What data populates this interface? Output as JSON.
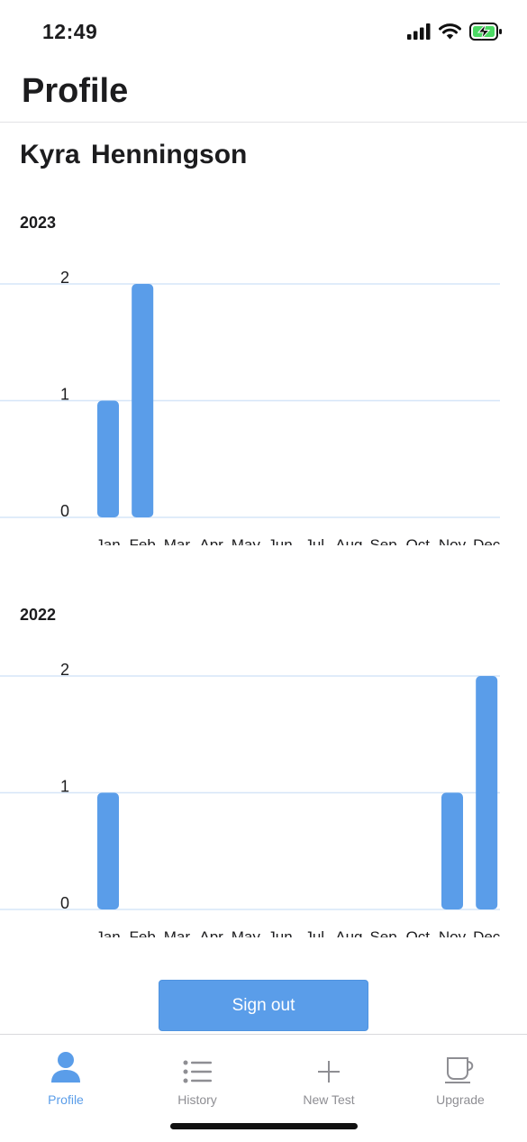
{
  "status_bar": {
    "time": "12:49",
    "signal_icon": "cellular-signal-icon",
    "wifi_icon": "wifi-icon",
    "battery_icon": "battery-charging-icon"
  },
  "page": {
    "title": "Profile"
  },
  "user": {
    "name": "Kyra  Henningson"
  },
  "months": [
    "Jan",
    "Feb",
    "Mar",
    "Apr",
    "May",
    "Jun",
    "Jul",
    "Aug",
    "Sep",
    "Oct",
    "Nov",
    "Dec"
  ],
  "y_ticks": [
    "0",
    "1",
    "2"
  ],
  "chart_data": [
    {
      "type": "bar",
      "title": "2023",
      "categories": [
        "Jan",
        "Feb",
        "Mar",
        "Apr",
        "May",
        "Jun",
        "Jul",
        "Aug",
        "Sep",
        "Oct",
        "Nov",
        "Dec"
      ],
      "values": [
        1,
        2,
        0,
        0,
        0,
        0,
        0,
        0,
        0,
        0,
        0,
        0
      ],
      "ylim": [
        0,
        2
      ],
      "yticks": [
        0,
        1,
        2
      ],
      "grid": true,
      "color": "#5a9de9"
    },
    {
      "type": "bar",
      "title": "2022",
      "categories": [
        "Jan",
        "Feb",
        "Mar",
        "Apr",
        "May",
        "Jun",
        "Jul",
        "Aug",
        "Sep",
        "Oct",
        "Nov",
        "Dec"
      ],
      "values": [
        1,
        0,
        0,
        0,
        0,
        0,
        0,
        0,
        0,
        0,
        1,
        2
      ],
      "ylim": [
        0,
        2
      ],
      "yticks": [
        0,
        1,
        2
      ],
      "grid": true,
      "color": "#5a9de9"
    }
  ],
  "actions": {
    "sign_out": "Sign out"
  },
  "tabs": [
    {
      "label": "Profile",
      "icon": "person-icon",
      "active": true
    },
    {
      "label": "History",
      "icon": "list-icon",
      "active": false
    },
    {
      "label": "New Test",
      "icon": "plus-icon",
      "active": false
    },
    {
      "label": "Upgrade",
      "icon": "coffee-cup-icon",
      "active": false
    }
  ],
  "colors": {
    "accent": "#5a9de9",
    "grid": "#d6e6f8",
    "inactive": "#8e8e93"
  }
}
